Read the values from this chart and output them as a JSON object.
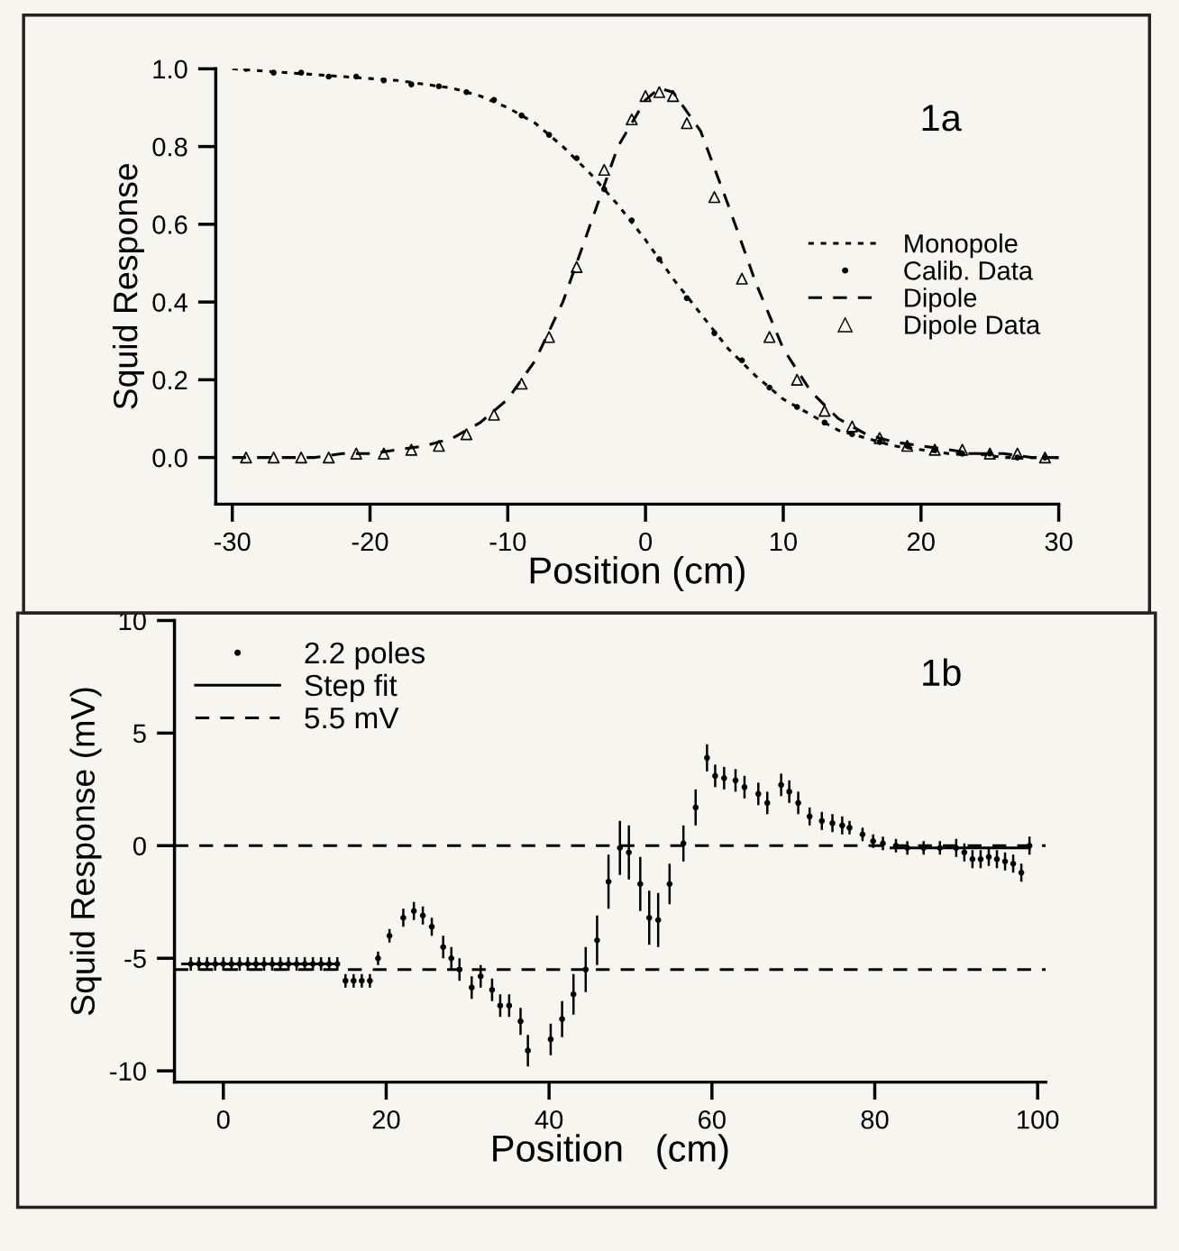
{
  "chart_data": [
    {
      "type": "line",
      "xlabel": "Position (cm)",
      "ylabel": "Squid Response",
      "xlim": [
        -31.2,
        30
      ],
      "ylim": [
        -0.12,
        1.0
      ],
      "xticks": [
        -30,
        -20,
        -10,
        0,
        10,
        20,
        30
      ],
      "yticks": [
        {
          "value": 0,
          "label": "0.0"
        },
        0.2,
        0.4,
        0.6,
        0.8,
        {
          "value": 1,
          "label": "1.0"
        }
      ],
      "grid": false,
      "legend": "right",
      "annotations": [
        "1a"
      ],
      "series": [
        {
          "name": "Monopole",
          "line_style": "dotted",
          "marker": "none",
          "color": "#000000",
          "x": [
            -30,
            -28,
            -26,
            -24,
            -22,
            -20,
            -18,
            -16,
            -14,
            -12,
            -10,
            -8,
            -6,
            -4,
            -2,
            0,
            2,
            4,
            6,
            8,
            10,
            12,
            14,
            16,
            18,
            20,
            22,
            24,
            26,
            28,
            30
          ],
          "values": [
            1.0,
            0.995,
            0.99,
            0.985,
            0.98,
            0.975,
            0.97,
            0.96,
            0.95,
            0.93,
            0.9,
            0.86,
            0.8,
            0.73,
            0.65,
            0.56,
            0.46,
            0.37,
            0.28,
            0.21,
            0.15,
            0.11,
            0.07,
            0.05,
            0.03,
            0.02,
            0.01,
            0.01,
            0.0,
            0.0,
            0.0
          ]
        },
        {
          "name": "Calib. Data",
          "type": "scatter",
          "marker": "circle",
          "color": "#000000",
          "x": [
            -29,
            -27,
            -25,
            -23,
            -21,
            -19,
            -17,
            -15,
            -13,
            -11,
            -9,
            -7,
            -5,
            -3,
            -1,
            1,
            3,
            5,
            7,
            9,
            11,
            13,
            15,
            17,
            19,
            21,
            23,
            25,
            27,
            29
          ],
          "values": [
            1.0,
            0.99,
            0.99,
            0.98,
            0.98,
            0.97,
            0.96,
            0.955,
            0.94,
            0.92,
            0.88,
            0.83,
            0.77,
            0.69,
            0.61,
            0.51,
            0.41,
            0.32,
            0.25,
            0.18,
            0.13,
            0.09,
            0.06,
            0.04,
            0.03,
            0.02,
            0.01,
            0.01,
            0.0,
            0.0
          ]
        },
        {
          "name": "Dipole",
          "line_style": "dashed",
          "marker": "none",
          "color": "#000000",
          "x": [
            -30,
            -28,
            -26,
            -24,
            -22,
            -20,
            -18,
            -16,
            -14,
            -12,
            -10,
            -8,
            -6,
            -4,
            -2,
            0,
            1,
            2,
            4,
            6,
            8,
            10,
            12,
            14,
            16,
            18,
            20,
            22,
            24,
            26,
            28,
            30
          ],
          "values": [
            0,
            0,
            0,
            0,
            0.01,
            0.01,
            0.02,
            0.03,
            0.05,
            0.09,
            0.15,
            0.25,
            0.4,
            0.6,
            0.8,
            0.92,
            0.95,
            0.94,
            0.84,
            0.65,
            0.45,
            0.28,
            0.17,
            0.1,
            0.06,
            0.04,
            0.03,
            0.02,
            0.01,
            0.01,
            0.0,
            0.0
          ]
        },
        {
          "name": "Dipole Data",
          "type": "scatter",
          "marker": "triangle",
          "color": "#000000",
          "x": [
            -29,
            -27,
            -25,
            -23,
            -21,
            -19,
            -17,
            -15,
            -13,
            -11,
            -9,
            -7,
            -5,
            -3,
            -1,
            0,
            1,
            2,
            3,
            5,
            7,
            9,
            11,
            13,
            15,
            17,
            19,
            21,
            23,
            25,
            27,
            29
          ],
          "values": [
            0,
            0,
            0,
            0,
            0.01,
            0.01,
            0.02,
            0.03,
            0.06,
            0.11,
            0.19,
            0.31,
            0.49,
            0.74,
            0.87,
            0.93,
            0.94,
            0.93,
            0.86,
            0.67,
            0.46,
            0.31,
            0.2,
            0.12,
            0.08,
            0.05,
            0.03,
            0.02,
            0.02,
            0.01,
            0.01,
            0.0
          ]
        }
      ]
    },
    {
      "type": "scatter",
      "xlabel": "Position   (cm)",
      "ylabel": "Squid Response (mV)",
      "xlim": [
        -6,
        101
      ],
      "ylim": [
        -10.5,
        10
      ],
      "xticks": [
        0,
        20,
        40,
        60,
        80,
        100
      ],
      "yticks": [
        -10,
        -5,
        0,
        5,
        10
      ],
      "grid": false,
      "legend": "top left",
      "annotations": [
        "1b"
      ],
      "ref_lines": [
        {
          "axis": "y",
          "value": 0,
          "label": "5.5 mV",
          "line_style": "dashed",
          "color": "#000000"
        },
        {
          "axis": "y",
          "value": -5.5,
          "label": null,
          "line_style": "dashed",
          "color": "#000000"
        }
      ],
      "series": [
        {
          "name": "2.2 poles",
          "marker": "circle",
          "color": "#000000",
          "x": [
            -4,
            -3,
            -2,
            -1,
            0,
            1,
            2,
            3,
            4,
            5,
            6,
            7,
            8,
            9,
            10,
            11,
            12,
            13,
            14,
            15,
            16,
            17,
            18,
            19,
            20.4,
            22.1,
            23.4,
            24.5,
            25.6,
            27,
            28,
            29,
            30.5,
            31.6,
            33,
            34,
            35.1,
            36.5,
            37.4,
            40.2,
            41.6,
            43,
            44.5,
            45.9,
            47.3,
            48.7,
            49.8,
            51.2,
            52.3,
            53.4,
            54.8,
            56.5,
            58,
            59.4,
            60.4,
            61.5,
            62.9,
            64,
            65.7,
            66.8,
            68.5,
            69.5,
            70.6,
            72,
            73.5,
            74.8,
            76,
            76.9,
            78.5,
            79.8,
            81,
            82.6,
            84,
            86,
            88,
            90,
            91,
            92,
            93,
            94,
            95,
            96,
            97,
            98,
            99
          ],
          "values": [
            -5.25,
            -5.25,
            -5.25,
            -5.25,
            -5.25,
            -5.25,
            -5.25,
            -5.25,
            -5.25,
            -5.25,
            -5.25,
            -5.25,
            -5.25,
            -5.25,
            -5.25,
            -5.25,
            -5.25,
            -5.25,
            -5.25,
            -6.0,
            -6.0,
            -6.0,
            -6.0,
            -5.0,
            -4.0,
            -3.2,
            -2.9,
            -3.1,
            -3.6,
            -4.5,
            -5.0,
            -5.5,
            -6.3,
            -5.8,
            -6.4,
            -7.1,
            -7.1,
            -7.8,
            -9.1,
            -8.6,
            -7.7,
            -6.6,
            -5.5,
            -4.2,
            -1.6,
            -0.1,
            -0.3,
            -1.7,
            -3.2,
            -3.3,
            -1.7,
            0.1,
            1.7,
            3.9,
            3.1,
            3.0,
            2.9,
            2.6,
            2.3,
            1.9,
            2.7,
            2.4,
            1.9,
            1.3,
            1.1,
            1.0,
            0.9,
            0.8,
            0.5,
            0.2,
            0.1,
            0.0,
            -0.1,
            -0.1,
            -0.1,
            -0.1,
            -0.3,
            -0.6,
            -0.6,
            -0.5,
            -0.6,
            -0.7,
            -0.8,
            -1.2,
            0.0
          ],
          "errors": [
            0.3,
            0.3,
            0.3,
            0.3,
            0.3,
            0.3,
            0.3,
            0.3,
            0.3,
            0.3,
            0.3,
            0.3,
            0.3,
            0.3,
            0.3,
            0.3,
            0.3,
            0.3,
            0.3,
            0.3,
            0.3,
            0.3,
            0.3,
            0.3,
            0.3,
            0.4,
            0.4,
            0.4,
            0.4,
            0.5,
            0.5,
            0.5,
            0.5,
            0.5,
            0.5,
            0.5,
            0.5,
            0.6,
            0.7,
            0.7,
            0.8,
            0.9,
            1.0,
            1.1,
            1.2,
            1.2,
            1.2,
            1.2,
            1.2,
            1.2,
            0.9,
            0.8,
            0.8,
            0.6,
            0.5,
            0.5,
            0.5,
            0.5,
            0.5,
            0.5,
            0.5,
            0.5,
            0.5,
            0.4,
            0.4,
            0.4,
            0.4,
            0.3,
            0.3,
            0.3,
            0.3,
            0.3,
            0.3,
            0.3,
            0.3,
            0.4,
            0.4,
            0.4,
            0.4,
            0.4,
            0.4,
            0.4,
            0.4,
            0.4,
            0.4
          ]
        },
        {
          "name": "Step fit",
          "type": "line",
          "line_style": "solid",
          "marker": "none",
          "color": "#000000",
          "x": [
            -5,
            14,
            15,
            82,
            99
          ],
          "values": [
            -5.25,
            -5.25,
            null,
            -0.1,
            -0.1
          ]
        }
      ]
    }
  ]
}
